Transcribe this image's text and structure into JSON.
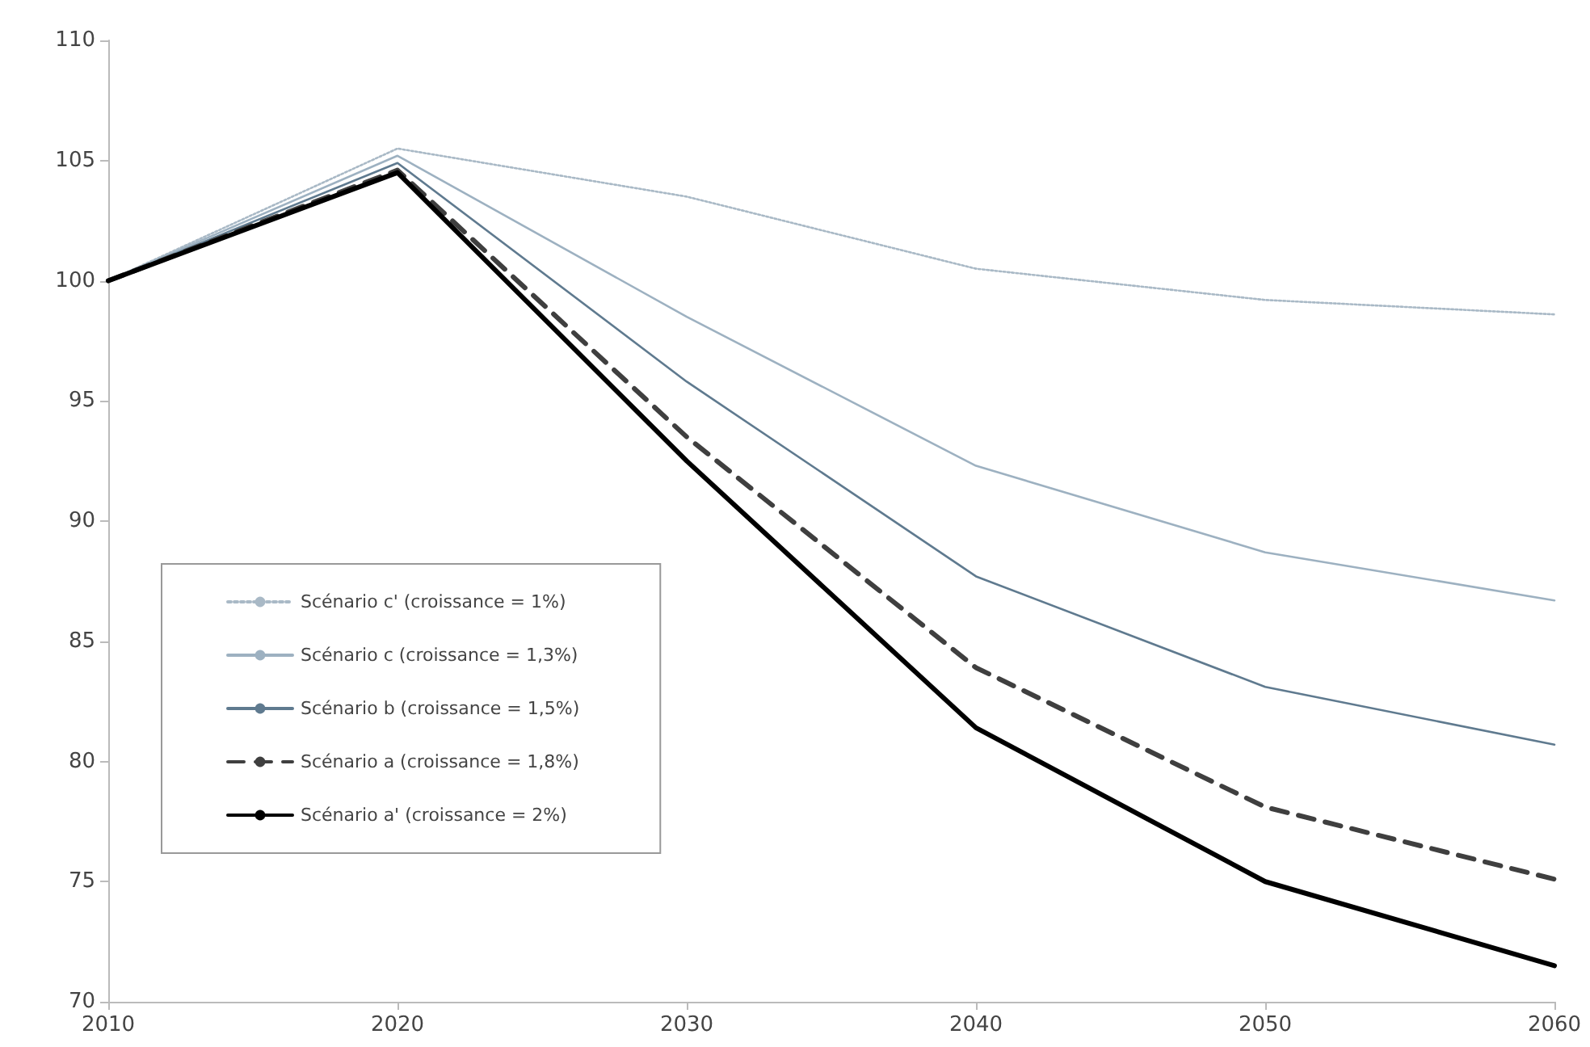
{
  "chart_data": {
    "type": "line",
    "categories": [
      "2010",
      "2020",
      "2030",
      "2040",
      "2050",
      "2060"
    ],
    "ylim": [
      70,
      110
    ],
    "yticks": [
      70,
      75,
      80,
      85,
      90,
      95,
      100,
      105,
      110
    ],
    "grid": false,
    "legend": "bottom left",
    "marker": "none",
    "series": [
      {
        "name": "Scénario c' (croissance = 1%)",
        "color": "#a9b9c6",
        "line_style": "dotted",
        "values": [
          100,
          105.5,
          103.5,
          100.5,
          99.2,
          98.6
        ]
      },
      {
        "name": "Scénario c (croissance = 1,3%)",
        "color": "#9db1c1",
        "line_style": "solid",
        "values": [
          100,
          105.2,
          98.5,
          92.3,
          88.7,
          86.7
        ]
      },
      {
        "name": "Scénario b (croissance = 1,5%)",
        "color": "#5f7a8f",
        "line_style": "solid",
        "values": [
          100,
          104.9,
          95.8,
          87.7,
          83.1,
          80.7
        ]
      },
      {
        "name": "Scénario a (croissance = 1,8%)",
        "color": "#3f3f3f",
        "line_style": "dashed",
        "values": [
          100,
          104.6,
          93.5,
          83.9,
          78.1,
          75.1
        ]
      },
      {
        "name": "Scénario a' (croissance = 2%)",
        "color": "#000000",
        "line_style": "solid",
        "values": [
          100,
          104.5,
          92.5,
          81.4,
          75.0,
          71.5
        ]
      }
    ]
  }
}
